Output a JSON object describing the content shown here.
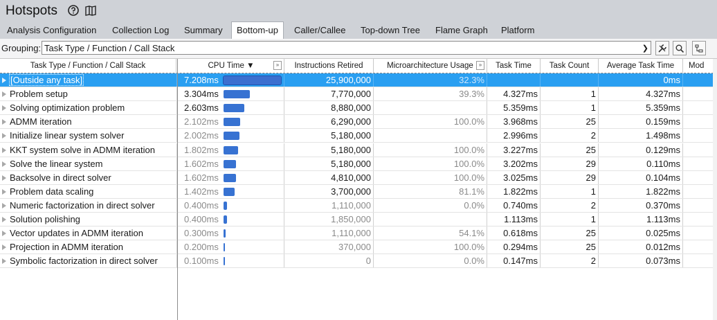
{
  "header": {
    "title": "Hotspots",
    "help_icon": "help-circle-icon",
    "guide_icon": "book-icon"
  },
  "tabs": [
    {
      "label": "Analysis Configuration",
      "active": false
    },
    {
      "label": "Collection Log",
      "active": false
    },
    {
      "label": "Summary",
      "active": false
    },
    {
      "label": "Bottom-up",
      "active": true
    },
    {
      "label": "Caller/Callee",
      "active": false
    },
    {
      "label": "Top-down Tree",
      "active": false
    },
    {
      "label": "Flame Graph",
      "active": false
    },
    {
      "label": "Platform",
      "active": false
    }
  ],
  "grouping": {
    "label": "Grouping:",
    "value": "Task Type / Function / Call Stack"
  },
  "toolbar_icons": [
    "wrench-icon",
    "search-icon",
    "tree-view-icon"
  ],
  "columns": {
    "task": "Task Type / Function / Call Stack",
    "cpu": "CPU Time ▼",
    "instr": "Instructions Retired",
    "micro": "Microarchitecture Usage",
    "task_time": "Task Time",
    "task_count": "Task Count",
    "avg_time": "Average Task Time",
    "mod": "Mod"
  },
  "rows": [
    {
      "name": "[Outside any task]",
      "cpu": "7.208ms",
      "cpu_frac": 1.0,
      "instr": "25,900,000",
      "micro": "32.3%",
      "task_time": "",
      "task_count": "",
      "avg_time": "0ms",
      "selected": true,
      "dim_cpu": false,
      "dim_instr": false
    },
    {
      "name": "Problem setup",
      "cpu": "3.304ms",
      "cpu_frac": 0.458,
      "instr": "7,770,000",
      "micro": "39.3%",
      "task_time": "4.327ms",
      "task_count": "1",
      "avg_time": "4.327ms",
      "selected": false,
      "dim_cpu": false,
      "dim_instr": false
    },
    {
      "name": "Solving optimization problem",
      "cpu": "2.603ms",
      "cpu_frac": 0.361,
      "instr": "8,880,000",
      "micro": "",
      "task_time": "5.359ms",
      "task_count": "1",
      "avg_time": "5.359ms",
      "selected": false,
      "dim_cpu": false,
      "dim_instr": false
    },
    {
      "name": "ADMM iteration",
      "cpu": "2.102ms",
      "cpu_frac": 0.292,
      "instr": "6,290,000",
      "micro": "100.0%",
      "task_time": "3.968ms",
      "task_count": "25",
      "avg_time": "0.159ms",
      "selected": false,
      "dim_cpu": true,
      "dim_instr": false
    },
    {
      "name": "Initialize linear system solver",
      "cpu": "2.002ms",
      "cpu_frac": 0.278,
      "instr": "5,180,000",
      "micro": "",
      "task_time": "2.996ms",
      "task_count": "2",
      "avg_time": "1.498ms",
      "selected": false,
      "dim_cpu": true,
      "dim_instr": false
    },
    {
      "name": "KKT system solve in ADMM iteration",
      "cpu": "1.802ms",
      "cpu_frac": 0.25,
      "instr": "5,180,000",
      "micro": "100.0%",
      "task_time": "3.227ms",
      "task_count": "25",
      "avg_time": "0.129ms",
      "selected": false,
      "dim_cpu": true,
      "dim_instr": false
    },
    {
      "name": "Solve the linear system",
      "cpu": "1.602ms",
      "cpu_frac": 0.222,
      "instr": "5,180,000",
      "micro": "100.0%",
      "task_time": "3.202ms",
      "task_count": "29",
      "avg_time": "0.110ms",
      "selected": false,
      "dim_cpu": true,
      "dim_instr": false
    },
    {
      "name": "Backsolve in direct solver",
      "cpu": "1.602ms",
      "cpu_frac": 0.222,
      "instr": "4,810,000",
      "micro": "100.0%",
      "task_time": "3.025ms",
      "task_count": "29",
      "avg_time": "0.104ms",
      "selected": false,
      "dim_cpu": true,
      "dim_instr": false
    },
    {
      "name": "Problem data scaling",
      "cpu": "1.402ms",
      "cpu_frac": 0.195,
      "instr": "3,700,000",
      "micro": "81.1%",
      "task_time": "1.822ms",
      "task_count": "1",
      "avg_time": "1.822ms",
      "selected": false,
      "dim_cpu": true,
      "dim_instr": false
    },
    {
      "name": "Numeric factorization in direct solver",
      "cpu": "0.400ms",
      "cpu_frac": 0.056,
      "instr": "1,110,000",
      "micro": "0.0%",
      "task_time": "0.740ms",
      "task_count": "2",
      "avg_time": "0.370ms",
      "selected": false,
      "dim_cpu": true,
      "dim_instr": true
    },
    {
      "name": "Solution polishing",
      "cpu": "0.400ms",
      "cpu_frac": 0.056,
      "instr": "1,850,000",
      "micro": "",
      "task_time": "1.113ms",
      "task_count": "1",
      "avg_time": "1.113ms",
      "selected": false,
      "dim_cpu": true,
      "dim_instr": true
    },
    {
      "name": "Vector updates in ADMM iteration",
      "cpu": "0.300ms",
      "cpu_frac": 0.042,
      "instr": "1,110,000",
      "micro": "54.1%",
      "task_time": "0.618ms",
      "task_count": "25",
      "avg_time": "0.025ms",
      "selected": false,
      "dim_cpu": true,
      "dim_instr": true
    },
    {
      "name": "Projection in ADMM iteration",
      "cpu": "0.200ms",
      "cpu_frac": 0.028,
      "instr": "370,000",
      "micro": "100.0%",
      "task_time": "0.294ms",
      "task_count": "25",
      "avg_time": "0.012ms",
      "selected": false,
      "dim_cpu": true,
      "dim_instr": true
    },
    {
      "name": "Symbolic factorization in direct solver",
      "cpu": "0.100ms",
      "cpu_frac": 0.014,
      "instr": "0",
      "micro": "0.0%",
      "task_time": "0.147ms",
      "task_count": "2",
      "avg_time": "0.073ms",
      "selected": false,
      "dim_cpu": true,
      "dim_instr": true
    }
  ],
  "colors": {
    "selection": "#2a9ff1",
    "bar": "#3772d2",
    "header_bg": "#cfd2d7"
  }
}
